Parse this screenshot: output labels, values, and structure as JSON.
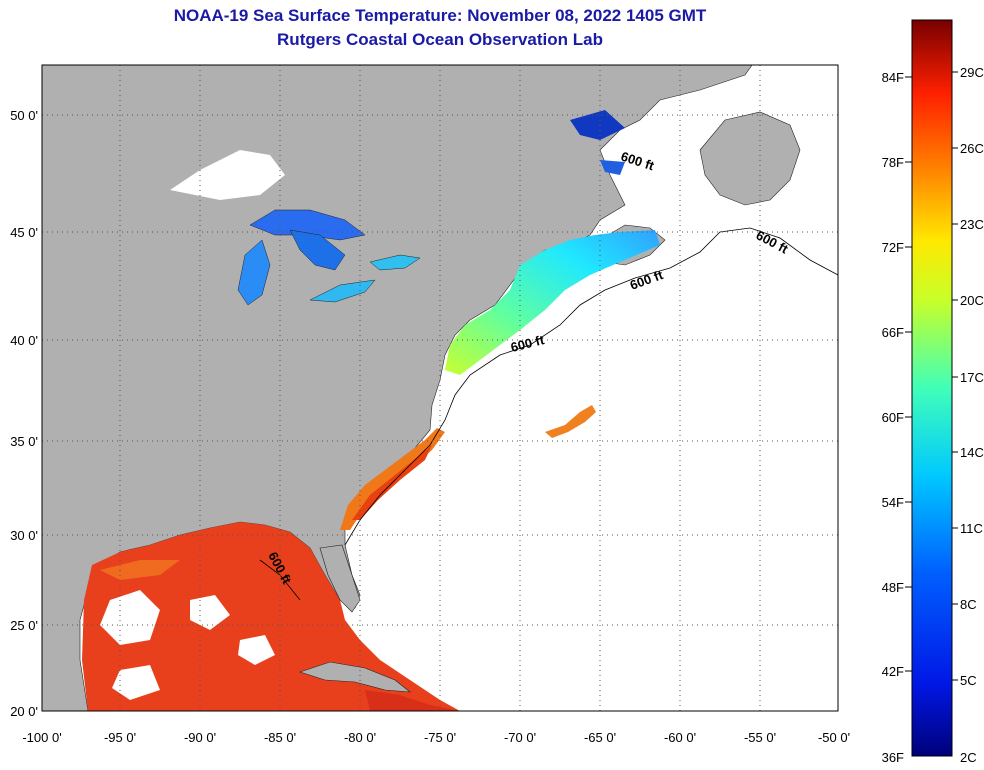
{
  "header": {
    "title": "NOAA-19 Sea Surface Temperature:  November 08, 2022 1405 GMT",
    "subtitle": "Rutgers Coastal Ocean Observation Lab"
  },
  "map": {
    "lon_ticks": [
      "-100 0'",
      "-95 0'",
      "-90 0'",
      "-85 0'",
      "-80 0'",
      "-75 0'",
      "-70 0'",
      "-65 0'",
      "-60 0'",
      "-55 0'",
      "-50 0'"
    ],
    "lat_ticks": [
      "50 0'",
      "45 0'",
      "40 0'",
      "35 0'",
      "30 0'",
      "25 0'",
      "20 0'"
    ],
    "contour_labels": [
      "600 ft",
      "600 ft",
      "600 ft",
      "600 ft",
      "600 ft"
    ],
    "colors": {
      "land": "#b0b0b0",
      "ocean_nodata": "#ffffff",
      "gulf": "#e8401c",
      "gulfstream": "#f07818"
    }
  },
  "colorbar": {
    "fahrenheit_labels": [
      "84F",
      "78F",
      "72F",
      "66F",
      "60F",
      "54F",
      "48F",
      "42F",
      "36F"
    ],
    "celsius_labels": [
      "29C",
      "26C",
      "23C",
      "20C",
      "17C",
      "14C",
      "11C",
      "8C",
      "5C",
      "2C"
    ]
  }
}
